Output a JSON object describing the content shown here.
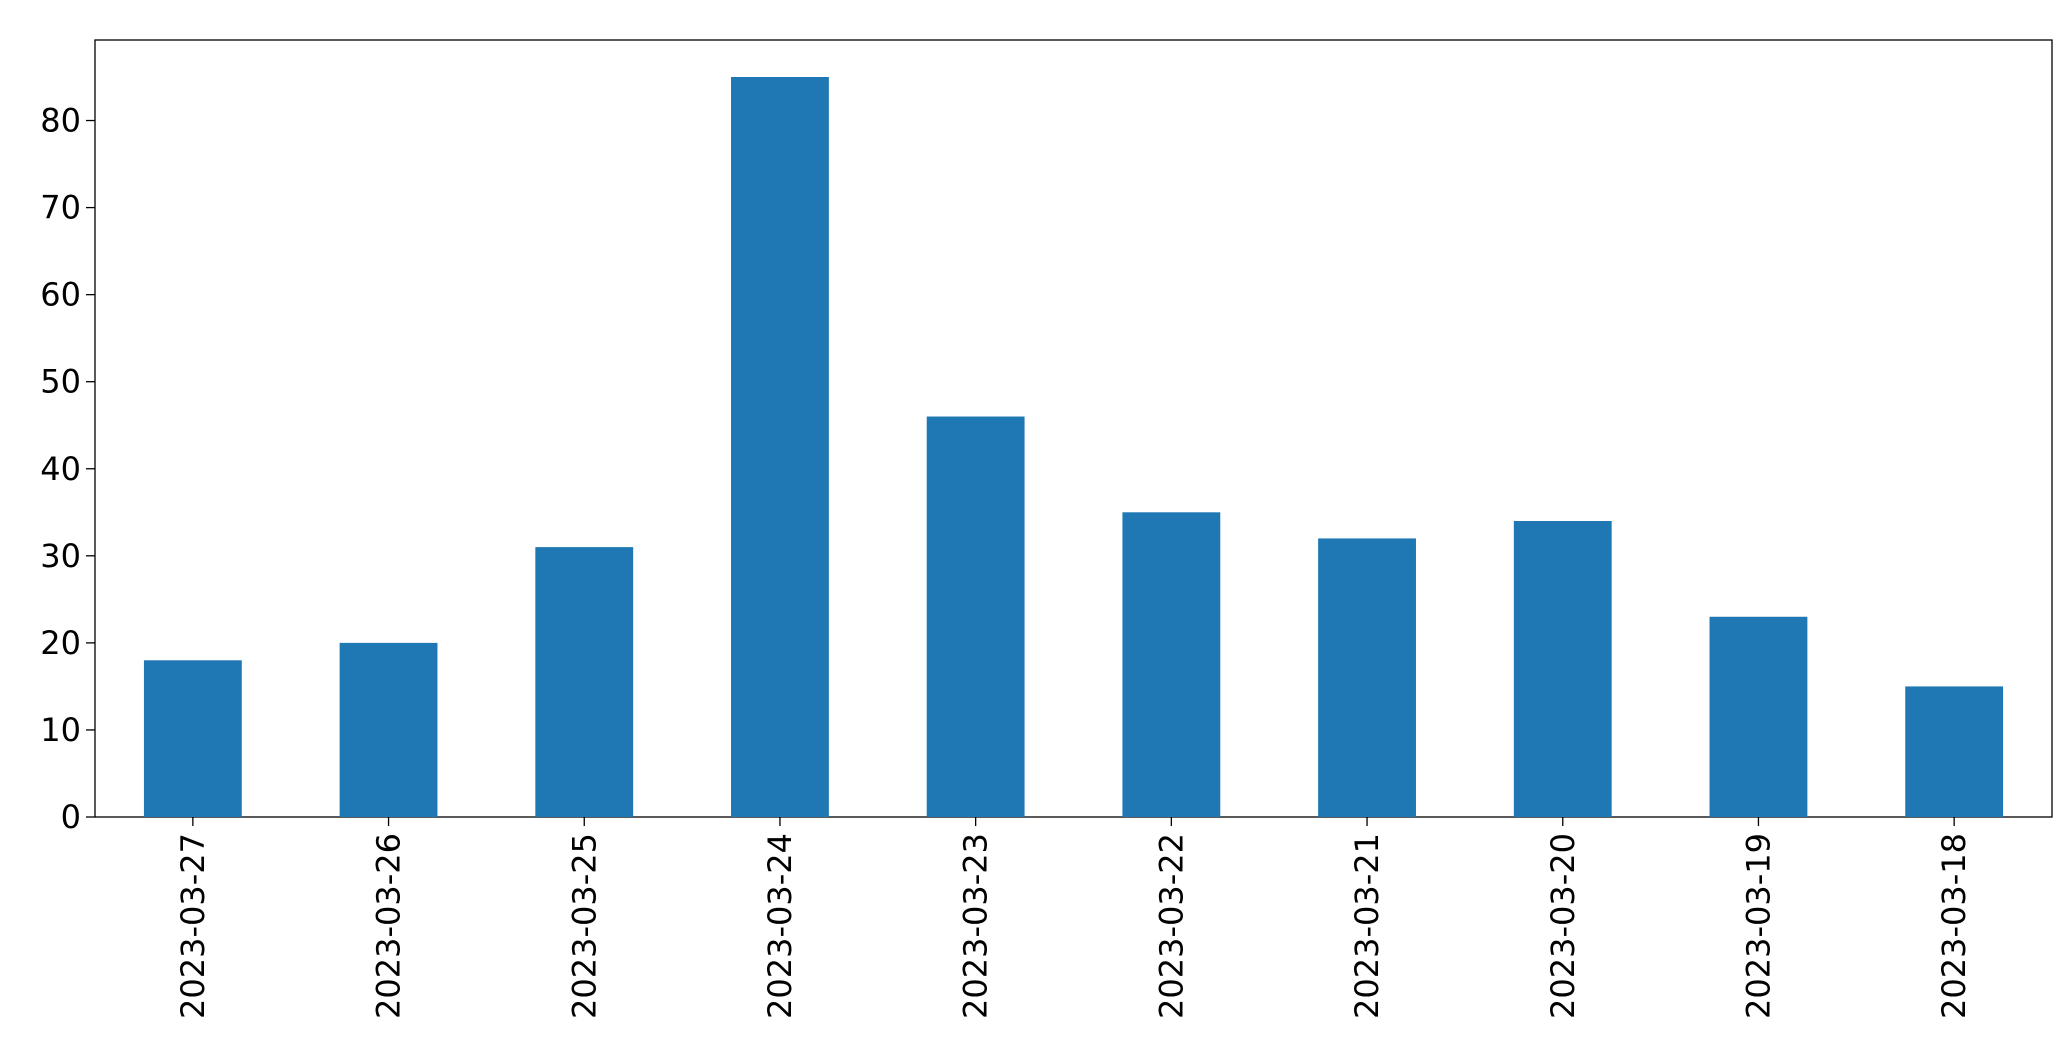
{
  "chart_data": {
    "type": "bar",
    "categories": [
      "2023-03-27",
      "2023-03-26",
      "2023-03-25",
      "2023-03-24",
      "2023-03-23",
      "2023-03-22",
      "2023-03-21",
      "2023-03-20",
      "2023-03-19",
      "2023-03-18"
    ],
    "values": [
      18,
      20,
      31,
      85,
      46,
      35,
      32,
      34,
      23,
      15
    ],
    "color": "#1f77b4",
    "ylim": [
      0,
      89.25
    ],
    "yticks": [
      0,
      10,
      20,
      30,
      40,
      50,
      60,
      70,
      80
    ],
    "grid": false
  }
}
